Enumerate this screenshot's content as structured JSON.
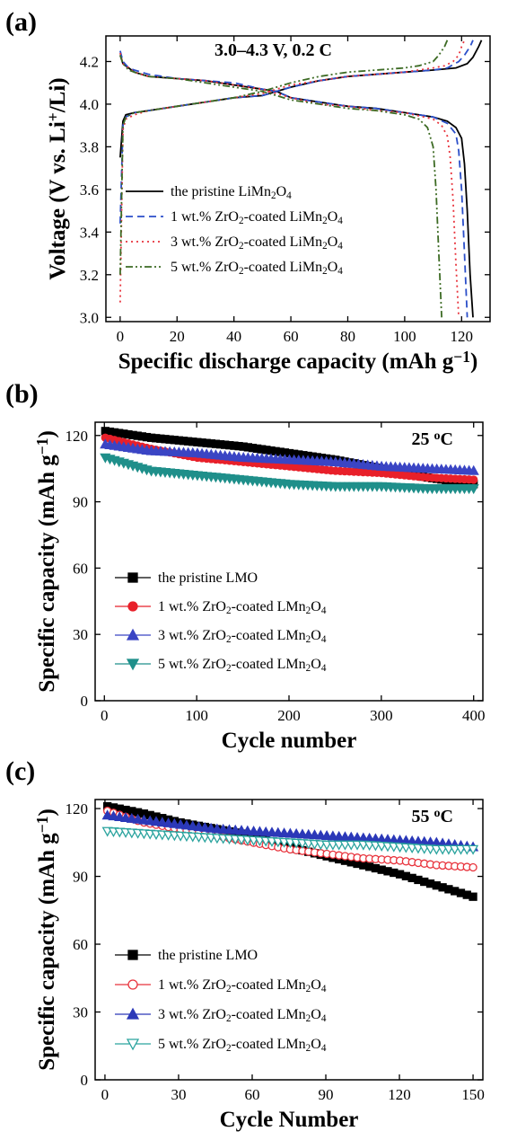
{
  "chart_data": [
    {
      "type": "line",
      "panel": "(a)",
      "annotation": "3.0–4.3 V, 0.2 C",
      "xlabel": "Specific discharge capacity (mAh g⁻¹)",
      "ylabel": "Voltage (V vs. Li⁺/Li)",
      "xlim": [
        -5,
        130
      ],
      "ylim": [
        2.98,
        4.32
      ],
      "xticks": [
        0,
        20,
        40,
        60,
        80,
        100,
        120
      ],
      "yticks": [
        3.0,
        3.2,
        3.4,
        3.6,
        3.8,
        4.0,
        4.2
      ],
      "legend_position": "lower-left",
      "series": [
        {
          "name": "the pristine LiMn₂O₄",
          "color": "#000000",
          "dash": "solid",
          "charge": {
            "x": [
              0,
              1,
              2,
              5,
              10,
              20,
              30,
              40,
              50,
              55,
              60,
              70,
              80,
              90,
              100,
              110,
              118,
              122,
              124,
              126,
              127
            ],
            "y": [
              3.75,
              3.92,
              3.95,
              3.96,
              3.97,
              3.99,
              4.01,
              4.03,
              4.04,
              4.06,
              4.08,
              4.11,
              4.13,
              4.14,
              4.15,
              4.16,
              4.17,
              4.19,
              4.22,
              4.27,
              4.3
            ]
          },
          "discharge": {
            "x": [
              0,
              1,
              3,
              5,
              10,
              20,
              30,
              40,
              50,
              55,
              60,
              70,
              80,
              90,
              100,
              110,
              115,
              118,
              120,
              121,
              122,
              123,
              124
            ],
            "y": [
              4.23,
              4.19,
              4.17,
              4.15,
              4.13,
              4.12,
              4.11,
              4.09,
              4.07,
              4.06,
              4.03,
              4.01,
              3.99,
              3.98,
              3.96,
              3.94,
              3.92,
              3.89,
              3.84,
              3.72,
              3.5,
              3.2,
              3.0
            ]
          }
        },
        {
          "name": "1 wt.% ZrO₂-coated LiMn₂O₄",
          "color": "#2b4fc9",
          "dash": "dashed",
          "charge": {
            "x": [
              0,
              1,
              2,
              5,
              10,
              20,
              30,
              40,
              50,
              55,
              60,
              70,
              80,
              90,
              100,
              110,
              115,
              119,
              121,
              123,
              124
            ],
            "y": [
              3.44,
              3.9,
              3.94,
              3.96,
              3.97,
              3.99,
              4.01,
              4.03,
              4.04,
              4.06,
              4.08,
              4.11,
              4.13,
              4.14,
              4.15,
              4.16,
              4.17,
              4.2,
              4.23,
              4.27,
              4.3
            ]
          },
          "discharge": {
            "x": [
              0,
              1,
              3,
              5,
              10,
              20,
              30,
              40,
              50,
              55,
              60,
              70,
              80,
              90,
              100,
              110,
              115,
              118,
              119,
              120,
              121,
              122
            ],
            "y": [
              4.25,
              4.2,
              4.17,
              4.16,
              4.14,
              4.12,
              4.11,
              4.1,
              4.07,
              4.06,
              4.03,
              4.01,
              3.99,
              3.98,
              3.96,
              3.94,
              3.91,
              3.86,
              3.78,
              3.6,
              3.3,
              3.0
            ]
          }
        },
        {
          "name": "3 wt.% ZrO₂-coated LiMn₂O₄",
          "color": "#e8333c",
          "dash": "dotted",
          "charge": {
            "x": [
              0,
              1,
              2,
              5,
              10,
              20,
              30,
              40,
              50,
              55,
              60,
              70,
              80,
              90,
              100,
              110,
              114,
              117,
              119,
              120,
              121
            ],
            "y": [
              3.07,
              3.88,
              3.93,
              3.95,
              3.97,
              3.99,
              4.01,
              4.03,
              4.05,
              4.07,
              4.09,
              4.11,
              4.13,
              4.14,
              4.15,
              4.17,
              4.18,
              4.2,
              4.23,
              4.27,
              4.3
            ]
          },
          "discharge": {
            "x": [
              0,
              1,
              3,
              5,
              10,
              20,
              30,
              40,
              50,
              55,
              60,
              70,
              80,
              90,
              100,
              110,
              113,
              115,
              116,
              117,
              118,
              119
            ],
            "y": [
              4.24,
              4.19,
              4.17,
              4.15,
              4.13,
              4.12,
              4.11,
              4.09,
              4.07,
              4.05,
              4.03,
              4.0,
              3.99,
              3.97,
              3.96,
              3.93,
              3.9,
              3.85,
              3.75,
              3.55,
              3.25,
              3.0
            ]
          }
        },
        {
          "name": "5 wt.% ZrO₂-coated LiMn₂O₄",
          "color": "#3d6b24",
          "dash": "dash-dot-dot",
          "charge": {
            "x": [
              0,
              1,
              2,
              5,
              10,
              20,
              30,
              40,
              50,
              55,
              60,
              70,
              80,
              90,
              100,
              105,
              110,
              112,
              114,
              115
            ],
            "y": [
              3.2,
              3.9,
              3.94,
              3.96,
              3.97,
              3.99,
              4.01,
              4.03,
              4.06,
              4.08,
              4.1,
              4.13,
              4.15,
              4.16,
              4.17,
              4.18,
              4.2,
              4.23,
              4.27,
              4.3
            ]
          },
          "discharge": {
            "x": [
              0,
              1,
              3,
              5,
              10,
              20,
              30,
              40,
              50,
              55,
              60,
              70,
              80,
              90,
              100,
              105,
              108,
              110,
              111,
              112,
              113
            ],
            "y": [
              4.23,
              4.19,
              4.16,
              4.15,
              4.13,
              4.12,
              4.1,
              4.08,
              4.06,
              4.04,
              4.02,
              4.0,
              3.98,
              3.97,
              3.95,
              3.93,
              3.89,
              3.8,
              3.6,
              3.3,
              3.0
            ]
          }
        }
      ]
    },
    {
      "type": "scatter",
      "panel": "(b)",
      "annotation": "25 °C",
      "xlabel": "Cycle number",
      "ylabel": "Specific capacity (mAh g⁻¹)",
      "xlim": [
        -10,
        410
      ],
      "ylim": [
        0,
        126
      ],
      "xticks": [
        0,
        100,
        200,
        300,
        400
      ],
      "yticks": [
        0,
        30,
        60,
        90,
        120
      ],
      "legend_position": "lower-left",
      "series": [
        {
          "name": "the pristine LMO",
          "color": "#000000",
          "marker": "square-filled",
          "x": [
            1,
            50,
            100,
            150,
            200,
            250,
            300,
            350,
            400
          ],
          "y": [
            122,
            119,
            117,
            115,
            112,
            109,
            105,
            101,
            98
          ]
        },
        {
          "name": "1 wt.% ZrO₂-coated LMn₂O₄",
          "color": "#e8202a",
          "marker": "circle-filled",
          "x": [
            1,
            50,
            100,
            150,
            200,
            250,
            300,
            350,
            400
          ],
          "y": [
            119,
            114,
            110,
            108,
            106,
            104,
            103,
            101,
            100
          ]
        },
        {
          "name": "3 wt.% ZrO₂-coated LMn₂O₄",
          "color": "#3a45c4",
          "marker": "triangle-up-filled",
          "x": [
            1,
            50,
            100,
            150,
            200,
            250,
            300,
            350,
            400
          ],
          "y": [
            116,
            113,
            112,
            110,
            109,
            108,
            106,
            105,
            104
          ]
        },
        {
          "name": "5 wt.% ZrO₂-coated LMn₂O₄",
          "color": "#1f8f8a",
          "marker": "triangle-down-filled",
          "x": [
            1,
            50,
            100,
            150,
            200,
            250,
            300,
            350,
            400
          ],
          "y": [
            110,
            104,
            102,
            100,
            98,
            97,
            97,
            96,
            96
          ]
        }
      ]
    },
    {
      "type": "scatter",
      "panel": "(c)",
      "annotation": "55 °C",
      "xlabel": "Cycle Number",
      "ylabel": "Specific capacity (mAh g⁻¹)",
      "xlim": [
        -4,
        154
      ],
      "ylim": [
        0,
        124
      ],
      "xticks": [
        0,
        30,
        60,
        90,
        120,
        150
      ],
      "yticks": [
        0,
        30,
        60,
        90,
        120
      ],
      "legend_position": "lower-left",
      "series": [
        {
          "name": "the pristine LMO",
          "color": "#000000",
          "marker": "square-filled",
          "x": [
            1,
            15,
            30,
            45,
            60,
            75,
            90,
            105,
            120,
            135,
            150
          ],
          "y": [
            121,
            118,
            114,
            111,
            108,
            103,
            99,
            95,
            91,
            86,
            81
          ]
        },
        {
          "name": "1 wt.% ZrO₂-coated LMn₂O₄",
          "color": "#e8333c",
          "marker": "circle-open",
          "x": [
            1,
            15,
            30,
            45,
            60,
            75,
            90,
            105,
            120,
            135,
            150
          ],
          "y": [
            119,
            114,
            111,
            108,
            105,
            102,
            100,
            98,
            97,
            95,
            94
          ]
        },
        {
          "name": "3 wt.% ZrO₂-coated LMn₂O₄",
          "color": "#2b38b8",
          "marker": "triangle-up-filled",
          "x": [
            1,
            15,
            30,
            45,
            60,
            75,
            90,
            105,
            120,
            135,
            150
          ],
          "y": [
            117,
            115,
            113,
            111,
            110,
            109,
            108,
            107,
            106,
            105,
            103
          ]
        },
        {
          "name": "5 wt.% ZrO₂-coated LMn₂O₄",
          "color": "#2aa39e",
          "marker": "triangle-down-open",
          "x": [
            1,
            15,
            30,
            45,
            60,
            75,
            90,
            105,
            120,
            135,
            150
          ],
          "y": [
            110,
            109,
            108,
            107,
            106,
            105,
            104,
            104,
            103,
            102,
            102
          ]
        }
      ]
    }
  ]
}
